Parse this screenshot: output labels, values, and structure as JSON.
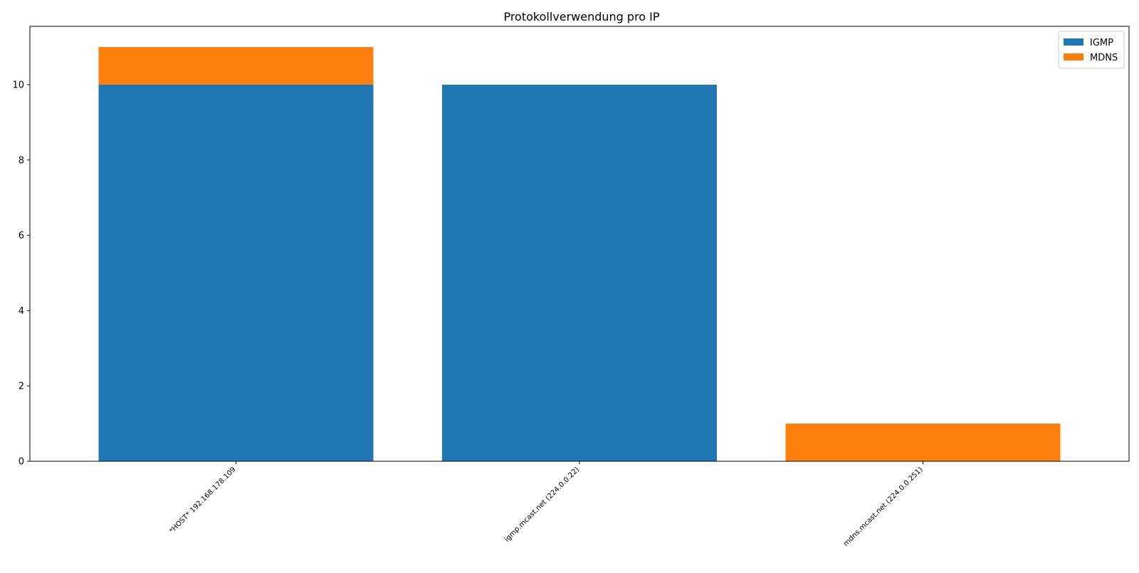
{
  "chart_data": {
    "type": "bar",
    "stacked": true,
    "title": "Protokollverwendung pro IP",
    "xlabel": "",
    "ylabel": "",
    "categories": [
      "*HOST* 192.168.178.109",
      "igmp.mcast.net (224.0.0.22)",
      "mdns.mcast.net (224.0.0.251)"
    ],
    "series": [
      {
        "name": "IGMP",
        "values": [
          10,
          10,
          0
        ],
        "color": "#1f77b4"
      },
      {
        "name": "MDNS",
        "values": [
          1,
          0,
          1
        ],
        "color": "#ff7f0e"
      }
    ],
    "ylim": [
      0,
      11.55
    ],
    "yticks": [
      0,
      2,
      4,
      6,
      8,
      10
    ],
    "grid": false,
    "legend_position": "top-right"
  }
}
